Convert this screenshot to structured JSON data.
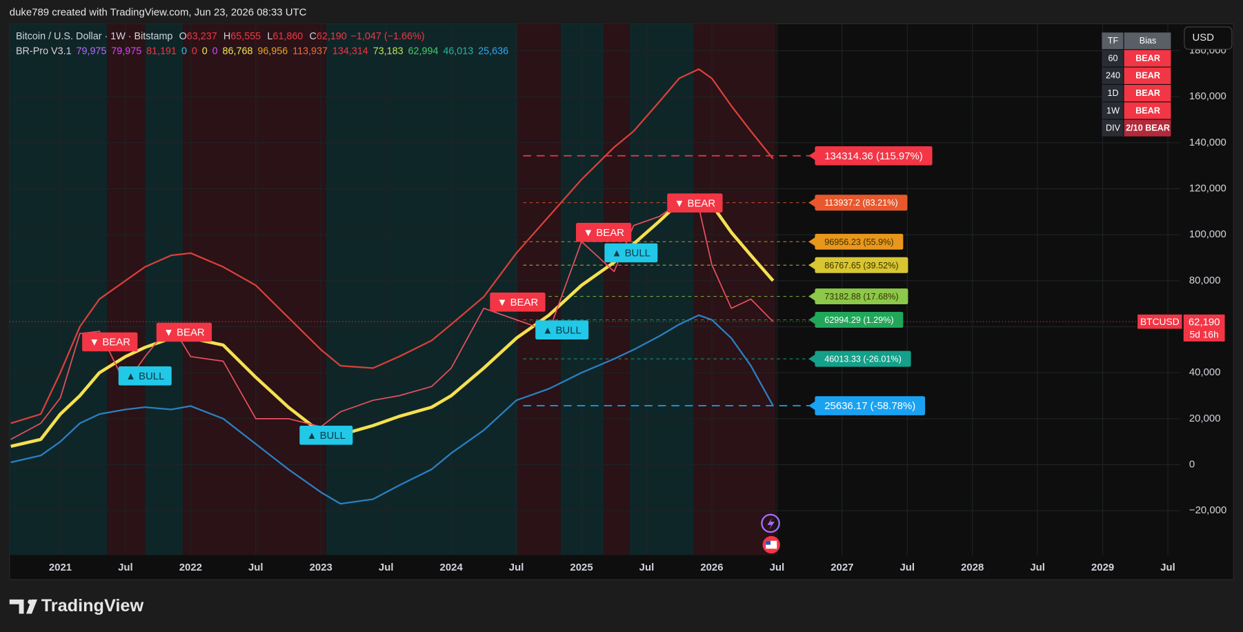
{
  "header": {
    "caption": "duke789 created with TradingView.com, Jun 23, 2026 08:33 UTC"
  },
  "footer": {
    "brand": "TradingView"
  },
  "toolbar": {
    "currency": "USD"
  },
  "legend": {
    "symbol": "Bitcoin / U.S. Dollar · 1W · Bitstamp",
    "ohlc": [
      {
        "key": "O",
        "value": "63,237"
      },
      {
        "key": "H",
        "value": "65,555"
      },
      {
        "key": "L",
        "value": "61,860"
      },
      {
        "key": "C",
        "value": "62,190"
      }
    ],
    "change": "−1,047 (−1.66%)",
    "indicator": "BR-Pro V3.1",
    "indicator_values": [
      {
        "text": "79,975",
        "color": "#b36bff"
      },
      {
        "text": "79,975",
        "color": "#e040fb"
      },
      {
        "text": "81,191",
        "color": "#f23645"
      },
      {
        "text": "0",
        "color": "#22c8e8"
      },
      {
        "text": "0",
        "color": "#f23645"
      },
      {
        "text": "0",
        "color": "#f5e050"
      },
      {
        "text": "0",
        "color": "#e040fb"
      },
      {
        "text": "86,768",
        "color": "#f5e050"
      },
      {
        "text": "96,956",
        "color": "#f0a020"
      },
      {
        "text": "113,937",
        "color": "#f06a3a"
      },
      {
        "text": "134,314",
        "color": "#f23645"
      },
      {
        "text": "73,183",
        "color": "#b5e655"
      },
      {
        "text": "62,994",
        "color": "#3ccf6a"
      },
      {
        "text": "46,013",
        "color": "#20b8a0"
      },
      {
        "text": "25,636",
        "color": "#2aa8f0"
      }
    ]
  },
  "bias_table": {
    "headers": [
      "TF",
      "Bias"
    ],
    "rows": [
      [
        "60",
        "BEAR"
      ],
      [
        "240",
        "BEAR"
      ],
      [
        "1D",
        "BEAR"
      ],
      [
        "1W",
        "BEAR"
      ],
      [
        "DIV",
        "2/10 BEAR"
      ]
    ]
  },
  "chart_data": {
    "type": "line",
    "xlim": [
      2020.61,
      2029.59
    ],
    "ylim": [
      -39300,
      191700
    ],
    "xticks": [
      {
        "value": 2021,
        "label": "2021"
      },
      {
        "value": 2021.5,
        "label": "Jul"
      },
      {
        "value": 2022,
        "label": "2022"
      },
      {
        "value": 2022.5,
        "label": "Jul"
      },
      {
        "value": 2023,
        "label": "2023"
      },
      {
        "value": 2023.5,
        "label": "Jul"
      },
      {
        "value": 2024,
        "label": "2024"
      },
      {
        "value": 2024.5,
        "label": "Jul"
      },
      {
        "value": 2025,
        "label": "2025"
      },
      {
        "value": 2025.5,
        "label": "Jul"
      },
      {
        "value": 2026,
        "label": "2026"
      },
      {
        "value": 2026.5,
        "label": "Jul"
      },
      {
        "value": 2027,
        "label": "2027"
      },
      {
        "value": 2027.5,
        "label": "Jul"
      },
      {
        "value": 2028,
        "label": "2028"
      },
      {
        "value": 2028.5,
        "label": "Jul"
      },
      {
        "value": 2029,
        "label": "2029"
      },
      {
        "value": 2029.5,
        "label": "Jul"
      }
    ],
    "yticks": [
      {
        "value": -20000,
        "label": "−20,000"
      },
      0,
      {
        "value": 20000,
        "label": "20,000"
      },
      {
        "value": 40000,
        "label": "40,000"
      },
      {
        "value": 60000,
        "label": "60,000"
      },
      {
        "value": 80000,
        "label": "80,000"
      },
      {
        "value": 100000,
        "label": "100,000"
      },
      {
        "value": 120000,
        "label": "120,000"
      },
      {
        "value": 140000,
        "label": "140,000"
      },
      {
        "value": 160000,
        "label": "160,000"
      },
      {
        "value": 180000,
        "label": "180,000"
      }
    ],
    "grid": true,
    "zones": [
      {
        "x": [
          2020.61,
          2021.36
        ],
        "color": "#0f2628"
      },
      {
        "x": [
          2021.36,
          2021.65
        ],
        "color": "#2a1216"
      },
      {
        "x": [
          2021.65,
          2021.94
        ],
        "color": "#0f2628"
      },
      {
        "x": [
          2021.94,
          2023.04
        ],
        "color": "#2a1216"
      },
      {
        "x": [
          2023.04,
          2024.51
        ],
        "color": "#0f2628"
      },
      {
        "x": [
          2024.51,
          2024.84
        ],
        "color": "#2a1216"
      },
      {
        "x": [
          2024.84,
          2025.17
        ],
        "color": "#0f2628"
      },
      {
        "x": [
          2025.17,
          2025.37
        ],
        "color": "#2a1216"
      },
      {
        "x": [
          2025.37,
          2025.86
        ],
        "color": "#0f2628"
      },
      {
        "x": [
          2025.86,
          2026.49
        ],
        "color": "#2a1216"
      }
    ],
    "x": [
      2020.62,
      2020.85,
      2021.0,
      2021.15,
      2021.3,
      2021.5,
      2021.65,
      2021.85,
      2022.0,
      2022.25,
      2022.5,
      2022.75,
      2023.0,
      2023.15,
      2023.4,
      2023.6,
      2023.85,
      2024.0,
      2024.25,
      2024.5,
      2024.75,
      2025.0,
      2025.25,
      2025.4,
      2025.6,
      2025.75,
      2025.9,
      2026.0,
      2026.15,
      2026.3,
      2026.47
    ],
    "series": [
      {
        "color": "#d9403a",
        "values": [
          18000,
          22000,
          40000,
          60000,
          72000,
          80000,
          86000,
          91000,
          92000,
          86000,
          78000,
          64000,
          50000,
          43000,
          42000,
          47000,
          54000,
          61000,
          73000,
          92000,
          108000,
          124000,
          138000,
          145000,
          158000,
          168000,
          172000,
          168000,
          156000,
          145000,
          133000
        ]
      },
      {
        "color": "#f5e050",
        "values": [
          8000,
          11000,
          22000,
          30000,
          40000,
          47000,
          51000,
          55000,
          55000,
          52000,
          38000,
          25000,
          14000,
          13000,
          17000,
          21000,
          25000,
          30000,
          42000,
          55000,
          65000,
          78000,
          88000,
          96000,
          106000,
          114000,
          116000,
          113000,
          101000,
          91000,
          80000
        ]
      },
      {
        "color": "#2a80c4",
        "values": [
          1000,
          4000,
          10000,
          18000,
          22000,
          24000,
          25000,
          24000,
          25500,
          20000,
          9000,
          -2000,
          -12000,
          -17000,
          -15000,
          -9000,
          -2000,
          5000,
          15000,
          28000,
          33000,
          40000,
          46000,
          50000,
          56000,
          61000,
          65000,
          63000,
          55000,
          43000,
          25636
        ]
      },
      {
        "color": "#e8505f",
        "values": [
          11000,
          18000,
          29000,
          57000,
          58000,
          35000,
          47000,
          61000,
          47000,
          45000,
          20000,
          20000,
          16500,
          23000,
          28000,
          30000,
          34000,
          42000,
          68000,
          63000,
          58000,
          97000,
          84000,
          104000,
          108000,
          114000,
          112000,
          87000,
          68000,
          72000,
          62190
        ]
      }
    ],
    "levels": [
      {
        "value": 134314.36,
        "label": "134314.36 (115.97%)",
        "color": "#f23645"
      },
      {
        "value": 113937.2,
        "label": "113937.2 (83.21%)",
        "color": "#e8582c"
      },
      {
        "value": 96956.23,
        "label": "96956.23 (55.9%)",
        "color": "#e8961c"
      },
      {
        "value": 86767.65,
        "label": "86767.65 (39.52%)",
        "color": "#d8c632"
      },
      {
        "value": 73182.88,
        "label": "73182.88 (17.68%)",
        "color": "#8cc84a"
      },
      {
        "value": 62994.29,
        "label": "62994.29 (1.29%)",
        "color": "#20a85a"
      },
      {
        "value": 46013.33,
        "label": "46013.33 (-26.01%)",
        "color": "#14a08a"
      },
      {
        "value": 25636.17,
        "label": "25636.17 (-58.78%)",
        "color": "#1aa2f2"
      }
    ],
    "signals": [
      {
        "x": 2021.38,
        "y": 53400,
        "label": "▼ BEAR",
        "color": "#f23645"
      },
      {
        "x": 2021.65,
        "y": 38600,
        "label": "▲ BULL",
        "color": "#22c8e8"
      },
      {
        "x": 2021.95,
        "y": 57600,
        "label": "▼ BEAR",
        "color": "#f23645"
      },
      {
        "x": 2023.04,
        "y": 12800,
        "label": "▲ BULL",
        "color": "#22c8e8"
      },
      {
        "x": 2024.51,
        "y": 70700,
        "label": "▼ BEAR",
        "color": "#f23645"
      },
      {
        "x": 2024.85,
        "y": 58600,
        "label": "▲ BULL",
        "color": "#22c8e8"
      },
      {
        "x": 2025.17,
        "y": 101000,
        "label": "▼ BEAR",
        "color": "#f23645"
      },
      {
        "x": 2025.38,
        "y": 92100,
        "label": "▲ BULL",
        "color": "#22c8e8"
      },
      {
        "x": 2025.87,
        "y": 113800,
        "label": "▼ BEAR",
        "color": "#f23645"
      }
    ],
    "last_price": {
      "symbol": "BTCUSD",
      "label": "62,190",
      "countdown": "5d 16h"
    }
  }
}
